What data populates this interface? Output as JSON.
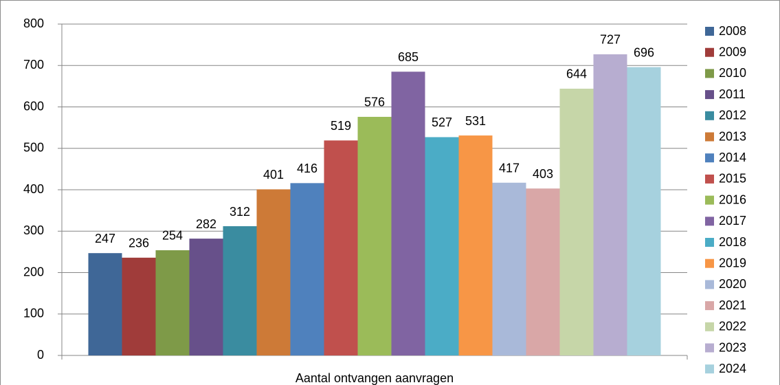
{
  "chart_data": {
    "type": "bar",
    "categories": [
      "Aantal ontvangen aanvragen"
    ],
    "series": [
      {
        "name": "2008",
        "color": "#3f6797",
        "values": [
          247
        ]
      },
      {
        "name": "2009",
        "color": "#a03c3a",
        "values": [
          236
        ]
      },
      {
        "name": "2010",
        "color": "#7e9a48",
        "values": [
          254
        ]
      },
      {
        "name": "2011",
        "color": "#67508a",
        "values": [
          282
        ]
      },
      {
        "name": "2012",
        "color": "#3a8ca0",
        "values": [
          312
        ]
      },
      {
        "name": "2013",
        "color": "#cd7a37",
        "values": [
          401
        ]
      },
      {
        "name": "2014",
        "color": "#4f81bd",
        "values": [
          416
        ]
      },
      {
        "name": "2015",
        "color": "#c0504d",
        "values": [
          519
        ]
      },
      {
        "name": "2016",
        "color": "#9bbb59",
        "values": [
          576
        ]
      },
      {
        "name": "2017",
        "color": "#8064a2",
        "values": [
          685
        ]
      },
      {
        "name": "2018",
        "color": "#4bacc6",
        "values": [
          527
        ]
      },
      {
        "name": "2019",
        "color": "#f79646",
        "values": [
          531
        ]
      },
      {
        "name": "2020",
        "color": "#a9b9d9",
        "values": [
          417
        ]
      },
      {
        "name": "2021",
        "color": "#d9a7a7",
        "values": [
          403
        ]
      },
      {
        "name": "2022",
        "color": "#c6d6a8",
        "values": [
          644
        ]
      },
      {
        "name": "2023",
        "color": "#b7add0",
        "values": [
          727
        ]
      },
      {
        "name": "2024",
        "color": "#a6d1de",
        "values": [
          696
        ]
      }
    ],
    "ylim": [
      0,
      800
    ],
    "yticks": [
      0,
      100,
      200,
      300,
      400,
      500,
      600,
      700,
      800
    ],
    "grid": true,
    "legend": "right"
  }
}
